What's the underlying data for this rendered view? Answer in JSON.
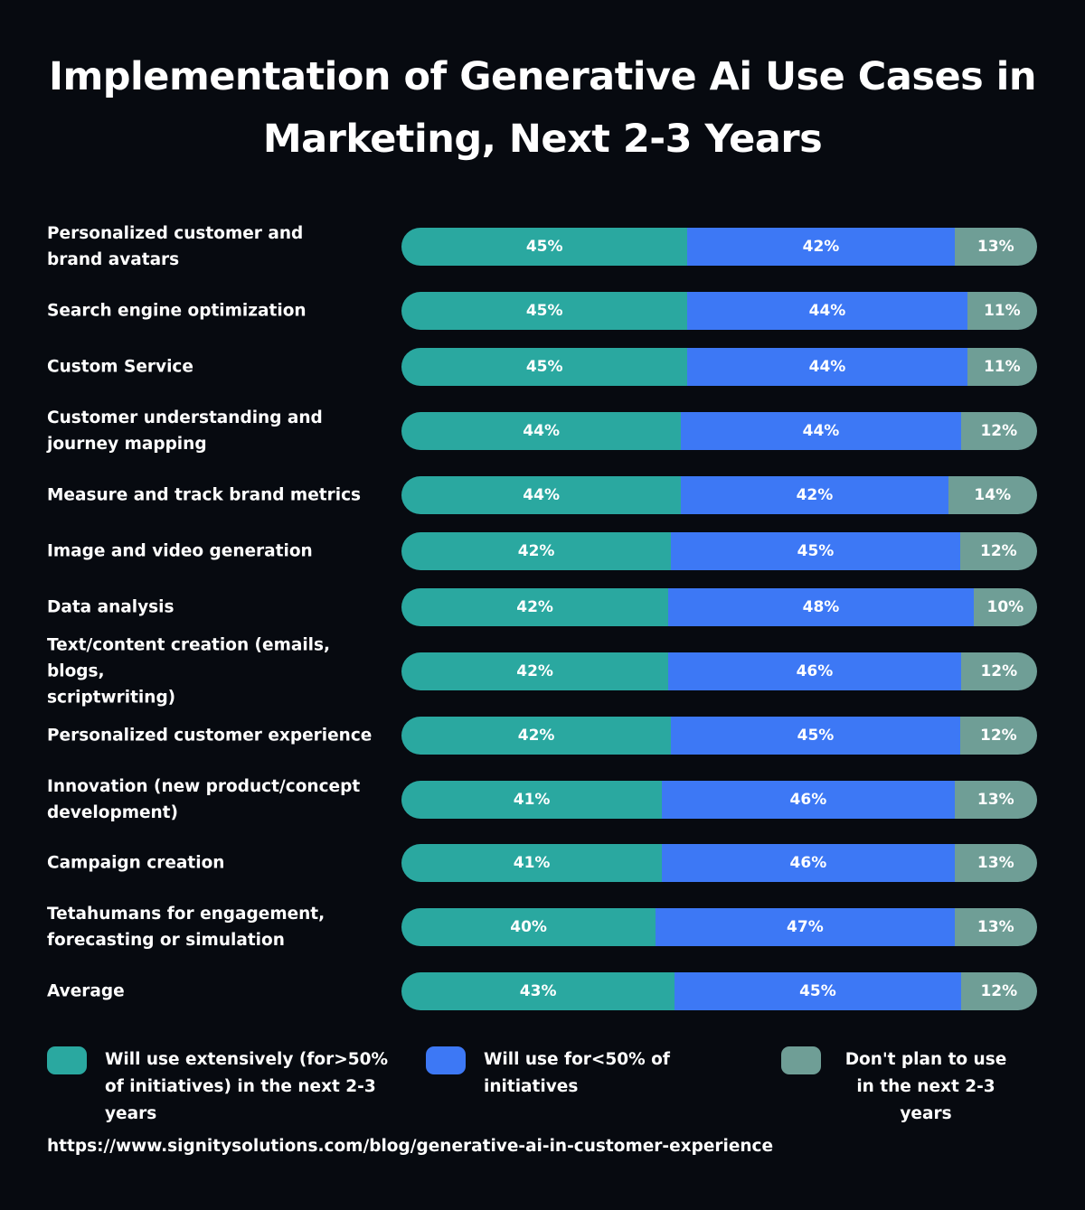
{
  "chart_data": {
    "type": "bar",
    "orientation": "horizontal",
    "stacked": true,
    "title_lines": [
      "Implementation of Generative Ai Use Cases in",
      "Marketing, Next 2-3 Years"
    ],
    "categories": [
      "Personalized customer and brand avatars",
      "Search engine optimization",
      "Custom Service",
      "Customer understanding and journey mapping",
      "Measure and track brand metrics",
      "Image and video generation",
      "Data analysis",
      "Text/content creation (emails, blogs, scriptwriting)",
      "Personalized customer experience",
      "Innovation (new product/concept development)",
      "Campaign creation",
      "Tetahumans for engagement, forecasting or simulation",
      "Average"
    ],
    "series": [
      {
        "name": "Will use extensively (for>50% of initiatives) in the next 2-3 years",
        "color": "#2aa8a0",
        "values": [
          45,
          45,
          45,
          44,
          44,
          42,
          42,
          42,
          42,
          41,
          41,
          40,
          43
        ]
      },
      {
        "name": "Will use for<50% of initiatives",
        "color": "#3d78f5",
        "values": [
          42,
          44,
          44,
          44,
          42,
          45,
          48,
          46,
          45,
          46,
          46,
          47,
          45
        ]
      },
      {
        "name": "Don't plan to use in the next 2-3 years",
        "color": "#6f9e96",
        "values": [
          13,
          11,
          11,
          12,
          14,
          12,
          10,
          12,
          12,
          13,
          13,
          13,
          12
        ]
      }
    ],
    "unit": "%",
    "legend_position": "bottom",
    "grid": false,
    "source_url": "https://www.signitysolutions.com/blog/generative-ai-in-customer-experience"
  },
  "label_lines": [
    [
      "Personalized customer and",
      "brand avatars"
    ],
    [
      "Search engine optimization"
    ],
    [
      "Custom Service"
    ],
    [
      "Customer understanding and",
      "journey mapping"
    ],
    [
      "Measure and track brand metrics"
    ],
    [
      "Image and video generation"
    ],
    [
      "Data analysis"
    ],
    [
      "Text/content creation (emails, blogs,",
      "scriptwriting)"
    ],
    [
      "Personalized customer experience"
    ],
    [
      "Innovation (new product/concept",
      "development)"
    ],
    [
      "Campaign creation"
    ],
    [
      "Tetahumans for engagement,",
      "forecasting or simulation"
    ],
    [
      "Average"
    ]
  ]
}
